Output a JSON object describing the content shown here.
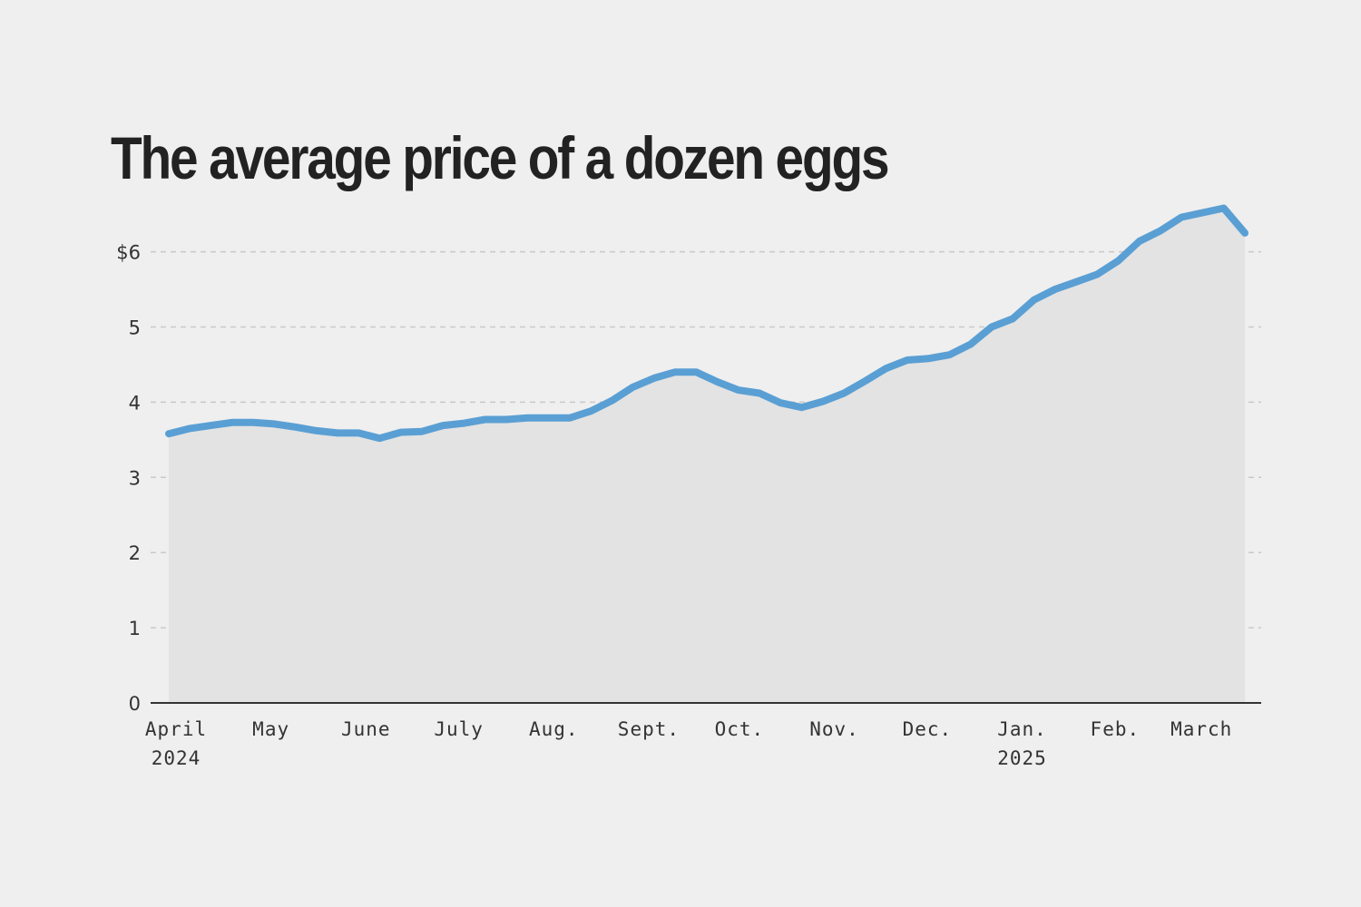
{
  "chart_data": {
    "type": "area",
    "title": "The average price of a dozen eggs",
    "xlabel": "",
    "ylabel": "",
    "ylim": [
      0,
      6.6
    ],
    "grid": true,
    "y_ticks": [
      {
        "value": 0,
        "label": "0"
      },
      {
        "value": 1,
        "label": "1"
      },
      {
        "value": 2,
        "label": "2"
      },
      {
        "value": 3,
        "label": "3"
      },
      {
        "value": 4,
        "label": "4"
      },
      {
        "value": 5,
        "label": "5"
      },
      {
        "value": 6,
        "label": "$6"
      }
    ],
    "x_ticks": [
      {
        "week": 0,
        "label": "April",
        "sublabel": "2024"
      },
      {
        "week": 4.5,
        "label": "May",
        "sublabel": ""
      },
      {
        "week": 9,
        "label": "June",
        "sublabel": ""
      },
      {
        "week": 13.4,
        "label": "July",
        "sublabel": ""
      },
      {
        "week": 17.9,
        "label": "Aug.",
        "sublabel": ""
      },
      {
        "week": 22.4,
        "label": "Sept.",
        "sublabel": ""
      },
      {
        "week": 26.7,
        "label": "Oct.",
        "sublabel": ""
      },
      {
        "week": 31.2,
        "label": "Nov.",
        "sublabel": ""
      },
      {
        "week": 35.6,
        "label": "Dec.",
        "sublabel": ""
      },
      {
        "week": 40.1,
        "label": "Jan.",
        "sublabel": "2025"
      },
      {
        "week": 44.5,
        "label": "Feb.",
        "sublabel": ""
      },
      {
        "week": 48.6,
        "label": "March",
        "sublabel": ""
      }
    ],
    "line_color": "#5a9fd4",
    "fill_color": "#e3e3e3",
    "series": [
      {
        "values": [
          3.58,
          3.65,
          3.69,
          3.73,
          3.73,
          3.71,
          3.67,
          3.62,
          3.59,
          3.59,
          3.52,
          3.6,
          3.61,
          3.69,
          3.72,
          3.77,
          3.77,
          3.79,
          3.79,
          3.79,
          3.88,
          4.02,
          4.2,
          4.32,
          4.4,
          4.4,
          4.27,
          4.16,
          4.12,
          3.99,
          3.93,
          4.01,
          4.12,
          4.28,
          4.45,
          4.56,
          4.58,
          4.63,
          4.77,
          5.0,
          5.11,
          5.36,
          5.5,
          5.6,
          5.7,
          5.88,
          6.14,
          6.28,
          6.46,
          6.52,
          6.58,
          6.25
        ]
      }
    ]
  }
}
